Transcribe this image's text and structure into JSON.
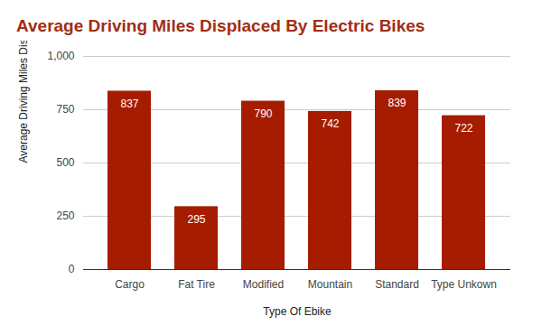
{
  "chart_data": {
    "type": "bar",
    "title": "Average Driving Miles Displaced By Electric Bikes",
    "x_label": "Type Of Ebike",
    "y_label": "Average Driving Miles Displaced",
    "categories": [
      "Cargo",
      "Fat Tire",
      "Modified",
      "Mountain",
      "Standard",
      "Type Unkown"
    ],
    "values": [
      837,
      295,
      790,
      742,
      839,
      722
    ],
    "color": "#a61c00",
    "ylim": [
      0,
      1000
    ],
    "yticks": [
      0,
      250,
      500,
      750,
      1000
    ],
    "grid": true,
    "data_labels": true
  }
}
